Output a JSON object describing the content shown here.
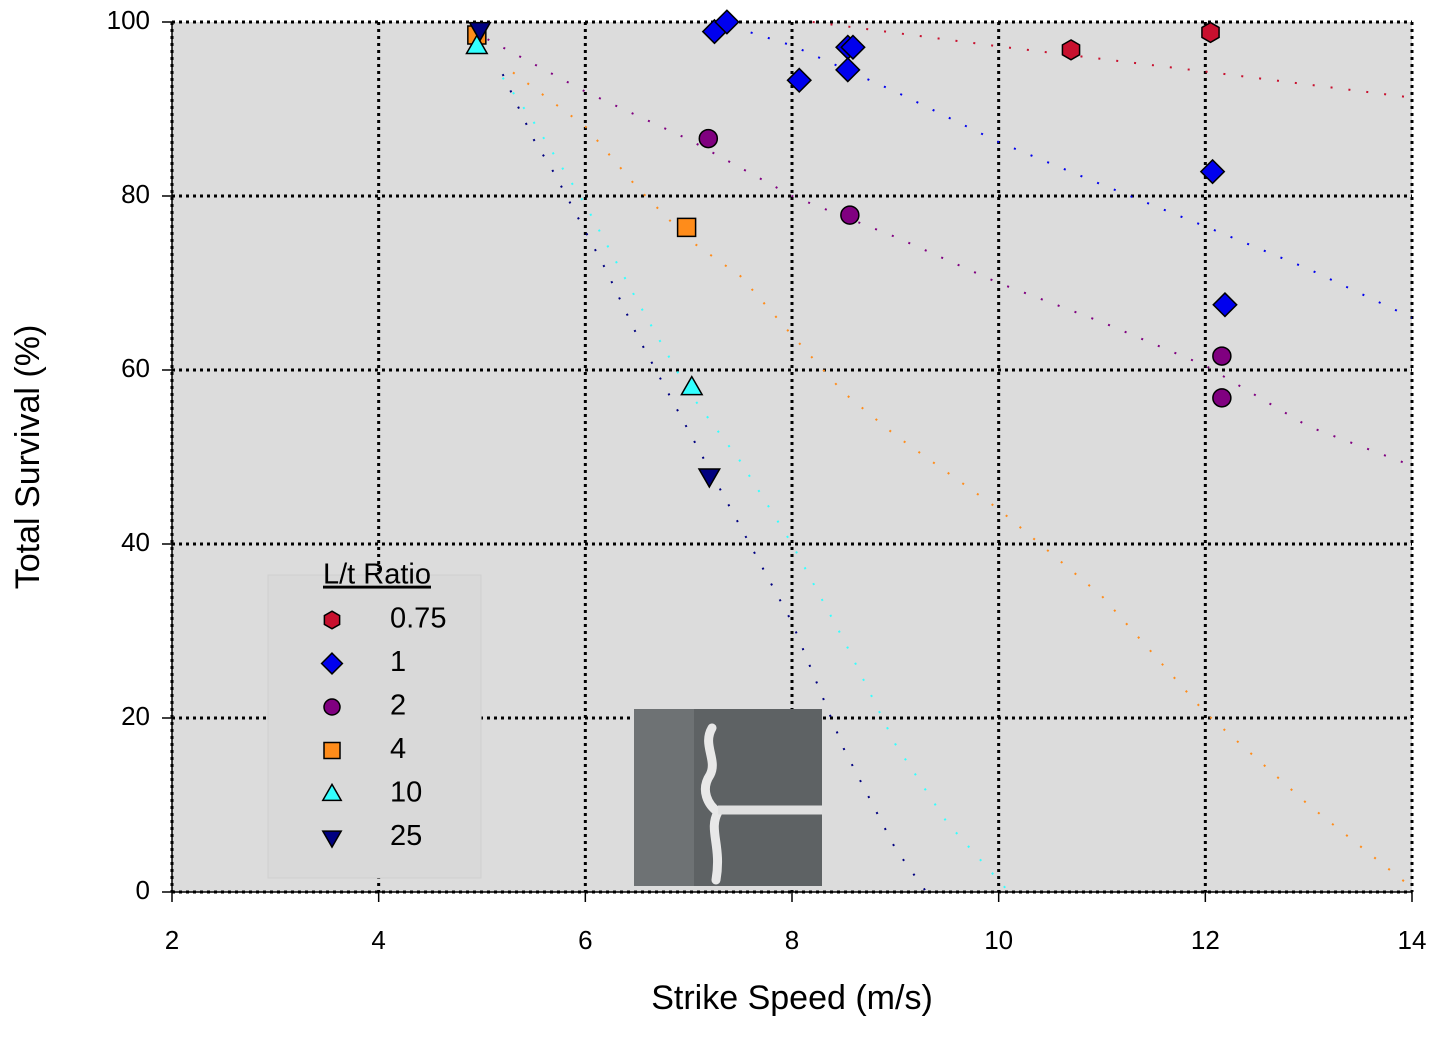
{
  "chart_data": {
    "type": "scatter",
    "xlabel": "Strike Speed (m/s)",
    "ylabel": "Total Survival (%)",
    "xlim": [
      2,
      14
    ],
    "ylim": [
      0,
      100
    ],
    "xticks": [
      2,
      4,
      6,
      8,
      10,
      12,
      14
    ],
    "yticks": [
      0,
      20,
      40,
      60,
      80,
      100
    ],
    "grid": true,
    "legend_title": "L/t Ratio",
    "legend_position": "lower left",
    "series": [
      {
        "name": "0.75",
        "color": "#c8102e",
        "marker": "hexagon",
        "x": [
          10.7,
          12.05
        ],
        "y": [
          96.8,
          98.8
        ]
      },
      {
        "name": "1",
        "color": "#0000ee",
        "marker": "diamond",
        "x": [
          7.25,
          7.37,
          8.07,
          8.54,
          8.59,
          8.54,
          12.07,
          12.19
        ],
        "y": [
          98.9,
          100,
          93.3,
          97.1,
          97.1,
          94.5,
          82.8,
          67.5
        ]
      },
      {
        "name": "2",
        "color": "#800080",
        "marker": "circle",
        "x": [
          7.19,
          8.56,
          12.16,
          12.16
        ],
        "y": [
          86.6,
          77.8,
          61.6,
          56.8
        ]
      },
      {
        "name": "4",
        "color": "#ff8c1a",
        "marker": "square",
        "x": [
          4.95,
          6.98
        ],
        "y": [
          98.5,
          76.4
        ]
      },
      {
        "name": "10",
        "color": "#33ffff",
        "marker": "triangle",
        "x": [
          4.95,
          7.03
        ],
        "y": [
          97.2,
          58.0
        ]
      },
      {
        "name": "25",
        "color": "#000080",
        "marker": "triangle-down",
        "x": [
          4.98,
          7.2
        ],
        "y": [
          99.1,
          47.8
        ]
      }
    ],
    "fits": [
      {
        "color": "#c8102e",
        "x": [
          8.2,
          10,
          12,
          14
        ],
        "y": [
          100,
          97.2,
          94.3,
          91.3
        ]
      },
      {
        "color": "#0000ee",
        "x": [
          7.6,
          8,
          9,
          10,
          11,
          12,
          13,
          14
        ],
        "y": [
          98.8,
          97.3,
          92,
          86.2,
          81.3,
          76.5,
          71.6,
          66
        ]
      },
      {
        "color": "#800080",
        "x": [
          4.9,
          6,
          7,
          8,
          9,
          10,
          11,
          12,
          13,
          14
        ],
        "y": [
          99,
          92,
          86.5,
          80,
          75.3,
          70,
          65.5,
          60.5,
          53.5,
          49
        ]
      },
      {
        "color": "#ff8c1a",
        "x": [
          5.3,
          6,
          6.5,
          7,
          7.5,
          8,
          8.5,
          9,
          10,
          11,
          12,
          13,
          14
        ],
        "y": [
          94.2,
          88,
          81,
          75,
          70.8,
          64,
          57.4,
          52.5,
          44,
          34,
          20.6,
          10,
          0.5
        ]
      },
      {
        "color": "#33ffff",
        "x": [
          5.2,
          5.5,
          6,
          6.5,
          7,
          7.5,
          8,
          8.5,
          9,
          9.5,
          10.1
        ],
        "y": [
          93.6,
          88.5,
          79,
          68,
          57.5,
          49.5,
          40,
          29,
          17,
          8,
          0
        ]
      },
      {
        "color": "#000080",
        "x": [
          5.2,
          5.5,
          5.7,
          6.2,
          6.5,
          7,
          7.5,
          8,
          8.5,
          9,
          9.3
        ],
        "y": [
          94,
          86.5,
          82.6,
          71.5,
          64,
          53,
          42,
          31,
          16.5,
          5,
          0
        ]
      }
    ]
  }
}
